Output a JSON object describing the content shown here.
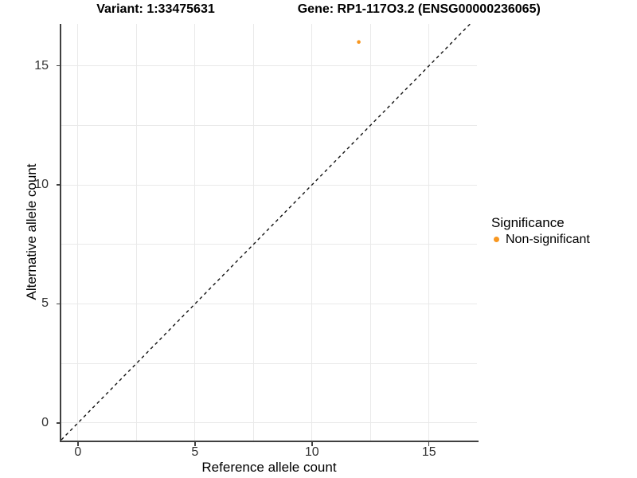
{
  "figure": {
    "title_left": "Variant: 1:33475631",
    "title_right": "Gene: RP1-117O3.2 (ENSG00000236065)"
  },
  "colors": {
    "non_significant": "#F89720",
    "gridline": "#E9E9E9",
    "axis_line": "#404040",
    "identity_line": "#111111",
    "background": "#FFFFFF"
  },
  "chart_data": {
    "type": "scatter",
    "title": "Variant: 1:33475631    Gene: RP1-117O3.2 (ENSG00000236065)",
    "xlabel": "Reference allele count",
    "ylabel": "Alternative allele count",
    "xlim": [
      -0.71,
      17.05
    ],
    "ylim": [
      -0.74,
      16.76
    ],
    "x_ticks": [
      0,
      5,
      10,
      15
    ],
    "y_ticks": [
      0,
      5,
      10,
      15
    ],
    "grid_positions_x": [
      0,
      2.5,
      5,
      7.5,
      10,
      12.5,
      15
    ],
    "grid_positions_y": [
      0,
      2.5,
      5,
      7.5,
      10,
      12.5,
      15
    ],
    "grid": true,
    "series": [
      {
        "name": "Non-significant",
        "color": "#F89720",
        "points": [
          {
            "x": 12,
            "y": 16
          }
        ]
      }
    ],
    "reference_line": {
      "type": "identity",
      "slope": 1,
      "intercept": 0,
      "style": "dashed",
      "color": "#111111"
    },
    "legend": {
      "title": "Significance",
      "position": "right",
      "entries": [
        {
          "label": "Non-significant",
          "color": "#F89720"
        }
      ]
    }
  }
}
